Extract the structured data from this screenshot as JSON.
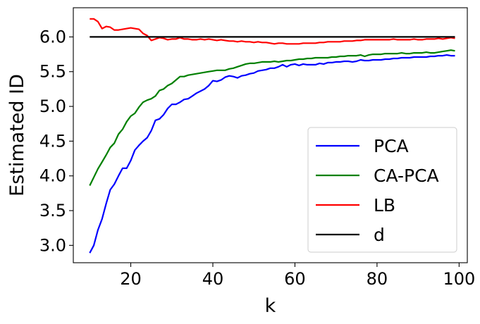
{
  "chart_data": {
    "type": "line",
    "title": "",
    "xlabel": "k",
    "ylabel": "Estimated ID",
    "xlim": [
      6,
      102
    ],
    "ylim": [
      2.75,
      6.42
    ],
    "xticks": [
      20,
      40,
      60,
      80,
      100
    ],
    "yticks": [
      3.0,
      3.5,
      4.0,
      4.5,
      5.0,
      5.5,
      6.0
    ],
    "ytick_labels": [
      "3.0",
      "3.5",
      "4.0",
      "4.5",
      "5.0",
      "5.5",
      "6.0"
    ],
    "grid": false,
    "legend_position": "lower-right",
    "series": [
      {
        "name": "PCA",
        "color": "#0000ff",
        "x": [
          10,
          11,
          12,
          13,
          14,
          15,
          16,
          17,
          18,
          19,
          20,
          21,
          22,
          23,
          24,
          25,
          26,
          27,
          28,
          29,
          30,
          31,
          32,
          33,
          34,
          35,
          36,
          37,
          38,
          39,
          40,
          41,
          42,
          43,
          44,
          45,
          46,
          47,
          48,
          49,
          50,
          51,
          52,
          53,
          54,
          55,
          56,
          57,
          58,
          59,
          60,
          61,
          62,
          63,
          64,
          65,
          66,
          67,
          68,
          69,
          70,
          71,
          72,
          73,
          74,
          75,
          76,
          77,
          78,
          79,
          80,
          81,
          82,
          83,
          84,
          85,
          86,
          87,
          88,
          89,
          90,
          91,
          92,
          93,
          94,
          95,
          96,
          97,
          98,
          99
        ],
        "y": [
          2.89,
          3.0,
          3.22,
          3.38,
          3.6,
          3.8,
          3.88,
          4.0,
          4.11,
          4.11,
          4.22,
          4.37,
          4.44,
          4.5,
          4.55,
          4.65,
          4.8,
          4.82,
          4.88,
          4.97,
          5.03,
          5.03,
          5.06,
          5.1,
          5.11,
          5.15,
          5.19,
          5.22,
          5.25,
          5.3,
          5.37,
          5.36,
          5.38,
          5.42,
          5.44,
          5.43,
          5.41,
          5.44,
          5.45,
          5.47,
          5.48,
          5.51,
          5.52,
          5.53,
          5.55,
          5.55,
          5.57,
          5.6,
          5.57,
          5.6,
          5.61,
          5.59,
          5.61,
          5.6,
          5.6,
          5.6,
          5.62,
          5.61,
          5.63,
          5.63,
          5.64,
          5.64,
          5.65,
          5.65,
          5.64,
          5.65,
          5.67,
          5.66,
          5.66,
          5.67,
          5.67,
          5.67,
          5.68,
          5.68,
          5.69,
          5.69,
          5.7,
          5.7,
          5.7,
          5.71,
          5.71,
          5.71,
          5.71,
          5.72,
          5.72,
          5.73,
          5.73,
          5.74,
          5.73,
          5.73
        ]
      },
      {
        "name": "CA-PCA",
        "color": "#008000",
        "x": [
          10,
          11,
          12,
          13,
          14,
          15,
          16,
          17,
          18,
          19,
          20,
          21,
          22,
          23,
          24,
          25,
          26,
          27,
          28,
          29,
          30,
          31,
          32,
          33,
          34,
          35,
          36,
          37,
          38,
          39,
          40,
          41,
          42,
          43,
          44,
          45,
          46,
          47,
          48,
          49,
          50,
          51,
          52,
          53,
          54,
          55,
          56,
          57,
          58,
          59,
          60,
          61,
          62,
          63,
          64,
          65,
          66,
          67,
          68,
          69,
          70,
          71,
          72,
          73,
          74,
          75,
          76,
          77,
          78,
          79,
          80,
          81,
          82,
          83,
          84,
          85,
          86,
          87,
          88,
          89,
          90,
          91,
          92,
          93,
          94,
          95,
          96,
          97,
          98,
          99
        ],
        "y": [
          3.86,
          3.98,
          4.1,
          4.2,
          4.3,
          4.41,
          4.47,
          4.6,
          4.67,
          4.78,
          4.86,
          4.9,
          4.99,
          5.06,
          5.09,
          5.11,
          5.15,
          5.23,
          5.25,
          5.3,
          5.33,
          5.38,
          5.43,
          5.43,
          5.45,
          5.46,
          5.47,
          5.48,
          5.49,
          5.5,
          5.51,
          5.52,
          5.52,
          5.52,
          5.54,
          5.55,
          5.57,
          5.59,
          5.61,
          5.62,
          5.62,
          5.63,
          5.64,
          5.64,
          5.64,
          5.65,
          5.64,
          5.65,
          5.66,
          5.66,
          5.67,
          5.68,
          5.68,
          5.69,
          5.69,
          5.7,
          5.7,
          5.7,
          5.7,
          5.71,
          5.71,
          5.72,
          5.72,
          5.73,
          5.73,
          5.73,
          5.74,
          5.72,
          5.74,
          5.75,
          5.75,
          5.75,
          5.76,
          5.76,
          5.76,
          5.76,
          5.77,
          5.76,
          5.76,
          5.77,
          5.77,
          5.77,
          5.78,
          5.77,
          5.77,
          5.78,
          5.79,
          5.8,
          5.81,
          5.8
        ]
      },
      {
        "name": "LB",
        "color": "#ff0000",
        "x": [
          10,
          11,
          12,
          13,
          14,
          15,
          16,
          17,
          18,
          19,
          20,
          21,
          22,
          23,
          24,
          25,
          26,
          27,
          28,
          29,
          30,
          31,
          32,
          33,
          34,
          35,
          36,
          37,
          38,
          39,
          40,
          41,
          42,
          43,
          44,
          45,
          46,
          47,
          48,
          49,
          50,
          51,
          52,
          53,
          54,
          55,
          56,
          57,
          58,
          59,
          60,
          61,
          62,
          63,
          64,
          65,
          66,
          67,
          68,
          69,
          70,
          71,
          72,
          73,
          74,
          75,
          76,
          77,
          78,
          79,
          80,
          81,
          82,
          83,
          84,
          85,
          86,
          87,
          88,
          89,
          90,
          91,
          92,
          93,
          94,
          95,
          96,
          97,
          98,
          99
        ],
        "y": [
          6.26,
          6.26,
          6.22,
          6.12,
          6.15,
          6.14,
          6.1,
          6.1,
          6.11,
          6.12,
          6.13,
          6.12,
          6.11,
          6.05,
          6.02,
          5.95,
          5.97,
          5.99,
          5.98,
          5.96,
          5.97,
          5.97,
          5.99,
          5.97,
          5.97,
          5.96,
          5.96,
          5.97,
          5.96,
          5.97,
          5.96,
          5.95,
          5.96,
          5.95,
          5.94,
          5.94,
          5.93,
          5.94,
          5.93,
          5.93,
          5.92,
          5.93,
          5.92,
          5.92,
          5.91,
          5.9,
          5.91,
          5.91,
          5.9,
          5.9,
          5.9,
          5.9,
          5.91,
          5.91,
          5.91,
          5.91,
          5.92,
          5.92,
          5.93,
          5.93,
          5.93,
          5.93,
          5.94,
          5.94,
          5.94,
          5.95,
          5.95,
          5.96,
          5.96,
          5.96,
          5.96,
          5.96,
          5.96,
          5.96,
          5.97,
          5.96,
          5.96,
          5.96,
          5.96,
          5.97,
          5.96,
          5.96,
          5.97,
          5.97,
          5.97,
          5.98,
          5.97,
          5.98,
          5.99,
          5.98
        ]
      },
      {
        "name": "d",
        "color": "#000000",
        "x": [
          10,
          99
        ],
        "y": [
          6.0,
          6.0
        ]
      }
    ]
  }
}
